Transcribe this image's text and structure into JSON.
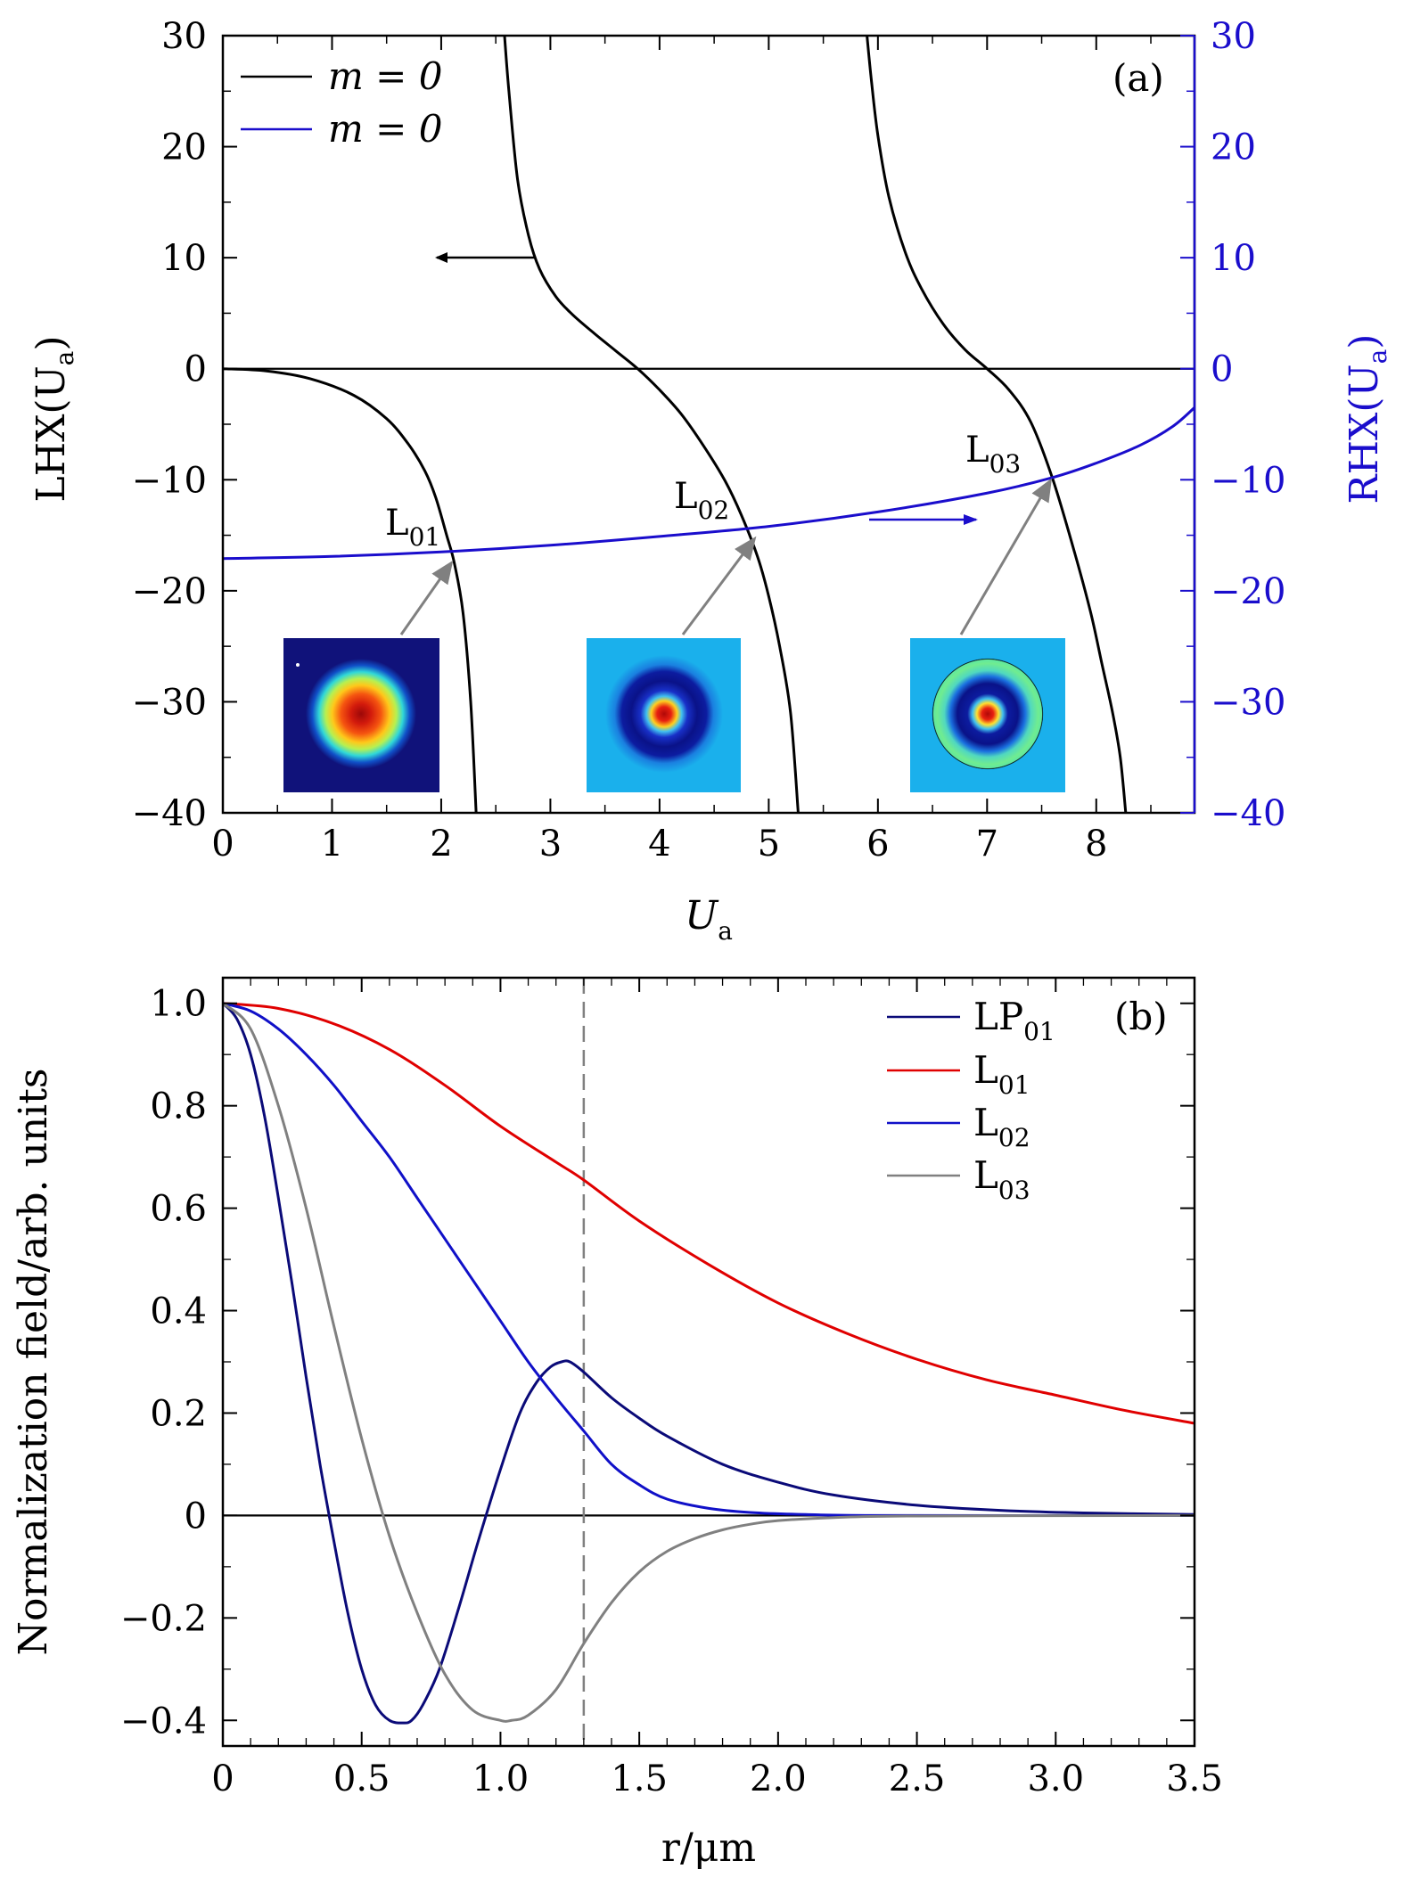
{
  "chart_data": [
    {
      "panel": "(a)",
      "type": "line",
      "xlabel": "U",
      "xlabel_sub": "a",
      "ylabel_left": "LHX(U",
      "ylabel_left_sub": "a",
      "ylabel_left_close": ")",
      "ylabel_right": "RHX(U",
      "ylabel_right_sub": "a",
      "ylabel_right_close": ")",
      "xlim": [
        0,
        8.9
      ],
      "ylim": [
        -40,
        30
      ],
      "xticks": [
        "0",
        "1",
        "2",
        "3",
        "4",
        "5",
        "6",
        "7",
        "8"
      ],
      "yticks_left": [
        "30",
        "20",
        "10",
        "0",
        "−10",
        "−20",
        "−30",
        "−40"
      ],
      "yticks_right": [
        "30",
        "20",
        "10",
        "0",
        "−10",
        "−20",
        "−30",
        "−40"
      ],
      "legend": [
        {
          "label": "m = 0",
          "color": "#000000"
        },
        {
          "label": "m = 0",
          "color": "#1a0dcc"
        }
      ],
      "series": [
        {
          "name": "LHX branch 1",
          "color": "#000000",
          "x": [
            0,
            0.4,
            0.8,
            1.2,
            1.5,
            1.7,
            1.85,
            1.95,
            2.05,
            2.12,
            2.2,
            2.27,
            2.32
          ],
          "y": [
            0,
            -0.2,
            -0.9,
            -2.4,
            -4.5,
            -6.8,
            -9.2,
            -11.6,
            -15,
            -17.5,
            -22,
            -30,
            -40
          ]
        },
        {
          "name": "LHX branch 2",
          "color": "#000000",
          "x": [
            2.58,
            2.62,
            2.7,
            2.8,
            2.9,
            3.05,
            3.2,
            3.4,
            3.6,
            3.8,
            4.0,
            4.2,
            4.4,
            4.6,
            4.75,
            4.9,
            5.0,
            5.1,
            5.2,
            5.27
          ],
          "y": [
            30,
            25,
            17,
            12,
            9,
            6.5,
            4.9,
            3.2,
            1.6,
            0,
            -1.9,
            -4.1,
            -6.9,
            -10.1,
            -13.2,
            -17,
            -20.5,
            -25,
            -31,
            -40
          ]
        },
        {
          "name": "LHX branch 3",
          "color": "#000000",
          "x": [
            5.9,
            5.94,
            6.0,
            6.1,
            6.25,
            6.4,
            6.6,
            6.8,
            7.0,
            7.2,
            7.4,
            7.6,
            7.8,
            7.95,
            8.05,
            8.15,
            8.22,
            8.27
          ],
          "y": [
            30,
            26,
            21,
            15.5,
            10.5,
            7.2,
            4,
            1.7,
            0,
            -1.9,
            -4.8,
            -9.9,
            -16.5,
            -22,
            -26.5,
            -31,
            -35,
            -40
          ]
        },
        {
          "name": "RHX",
          "color": "#1a0dcc",
          "x": [
            0,
            1,
            2,
            3,
            4,
            5,
            6,
            7,
            7.6,
            8,
            8.4,
            8.7,
            8.9
          ],
          "y": [
            -17.1,
            -16.9,
            -16.5,
            -15.9,
            -15.1,
            -14.2,
            -12.9,
            -11.2,
            -9.8,
            -8.5,
            -6.9,
            -5.2,
            -3.5
          ]
        }
      ],
      "zero_line": 0,
      "annotations": [
        {
          "label": "L",
          "sub": "01",
          "x": 2.13,
          "y": -16.6
        },
        {
          "label": "L",
          "sub": "02",
          "x": 4.85,
          "y": -14.4
        },
        {
          "label": "L",
          "sub": "03",
          "x": 7.6,
          "y": -9.9
        }
      ],
      "direction_arrows": [
        {
          "points_to": "left axis",
          "color": "#000000"
        },
        {
          "points_to": "right axis",
          "color": "#1a0dcc"
        }
      ],
      "insets": [
        {
          "for": "L01",
          "background": "#10127a",
          "rings": [
            {
              "color": "#c8180c"
            },
            {
              "color": "#ee3a10"
            },
            {
              "color": "#ffd21a"
            },
            {
              "color": "#50e8b0"
            },
            {
              "color": "#10a8e8"
            }
          ]
        },
        {
          "for": "L02",
          "background": "#1ab0ec",
          "rings": [
            {
              "color": "#0a1288"
            },
            {
              "color": "#2040d8"
            },
            {
              "color": "#f0e040"
            },
            {
              "color": "#c81408"
            }
          ]
        },
        {
          "for": "L03",
          "background": "#1ab0ec",
          "rings": [
            {
              "color": "#000000"
            },
            {
              "color": "#60e8a0"
            },
            {
              "color": "#0a1288"
            },
            {
              "color": "#f0e040"
            },
            {
              "color": "#c81408"
            }
          ]
        }
      ]
    },
    {
      "panel": "(b)",
      "type": "line",
      "xlabel": "r/μm",
      "ylabel": "Normalization field/arb. units",
      "xlim": [
        0,
        3.5
      ],
      "ylim": [
        -0.45,
        1.05
      ],
      "xticks": [
        "0",
        "0.5",
        "1.0",
        "1.5",
        "2.0",
        "2.5",
        "3.0",
        "3.5"
      ],
      "yticks": [
        "1.0",
        "0.8",
        "0.6",
        "0.4",
        "0.2",
        "0",
        "−0.2",
        "−0.4"
      ],
      "legend": [
        {
          "label": "LP",
          "sub": "01",
          "color": "#0a0a78"
        },
        {
          "label": "L",
          "sub": "01",
          "color": "#e00000"
        },
        {
          "label": "L",
          "sub": "02",
          "color": "#1010c8"
        },
        {
          "label": "L",
          "sub": "03",
          "color": "#808080"
        }
      ],
      "vline_x": 1.3,
      "series": [
        {
          "name": "LP01",
          "color": "#0a0a78",
          "x": [
            0,
            0.05,
            0.1,
            0.15,
            0.2,
            0.25,
            0.3,
            0.35,
            0.4,
            0.45,
            0.5,
            0.55,
            0.6,
            0.65,
            0.68,
            0.72,
            0.78,
            0.85,
            0.92,
            1.0,
            1.07,
            1.13,
            1.18,
            1.22,
            1.25,
            1.3,
            1.4,
            1.5,
            1.6,
            1.8,
            2.0,
            2.2,
            2.5,
            2.8,
            3.1,
            3.5
          ],
          "y": [
            1.0,
            0.97,
            0.9,
            0.78,
            0.62,
            0.45,
            0.27,
            0.1,
            -0.05,
            -0.19,
            -0.3,
            -0.37,
            -0.4,
            -0.405,
            -0.4,
            -0.37,
            -0.3,
            -0.18,
            -0.05,
            0.09,
            0.2,
            0.26,
            0.29,
            0.3,
            0.3,
            0.28,
            0.23,
            0.19,
            0.155,
            0.1,
            0.065,
            0.04,
            0.02,
            0.01,
            0.005,
            0.002
          ]
        },
        {
          "name": "L01",
          "color": "#e00000",
          "x": [
            0,
            0.2,
            0.4,
            0.6,
            0.8,
            1.0,
            1.2,
            1.3,
            1.5,
            1.75,
            2.0,
            2.25,
            2.5,
            2.75,
            3.0,
            3.25,
            3.5
          ],
          "y": [
            1.0,
            0.99,
            0.96,
            0.91,
            0.84,
            0.76,
            0.69,
            0.655,
            0.575,
            0.49,
            0.415,
            0.355,
            0.305,
            0.265,
            0.235,
            0.205,
            0.18
          ]
        },
        {
          "name": "L02",
          "color": "#1010c8",
          "x": [
            0,
            0.1,
            0.2,
            0.3,
            0.4,
            0.5,
            0.6,
            0.7,
            0.8,
            0.9,
            1.0,
            1.1,
            1.2,
            1.3,
            1.4,
            1.5,
            1.6,
            1.75,
            1.9,
            2.1,
            2.4,
            3.5
          ],
          "y": [
            1.0,
            0.985,
            0.95,
            0.9,
            0.84,
            0.77,
            0.7,
            0.62,
            0.54,
            0.46,
            0.38,
            0.3,
            0.23,
            0.165,
            0.1,
            0.06,
            0.032,
            0.014,
            0.006,
            0.002,
            0.0,
            0.0
          ]
        },
        {
          "name": "L03",
          "color": "#808080",
          "x": [
            0,
            0.1,
            0.2,
            0.3,
            0.4,
            0.5,
            0.6,
            0.7,
            0.8,
            0.9,
            1.0,
            1.04,
            1.1,
            1.2,
            1.3,
            1.4,
            1.5,
            1.6,
            1.7,
            1.8,
            1.9,
            2.0,
            2.2,
            2.5,
            3.5
          ],
          "y": [
            1.0,
            0.95,
            0.8,
            0.6,
            0.37,
            0.15,
            -0.04,
            -0.19,
            -0.31,
            -0.38,
            -0.4,
            -0.4,
            -0.39,
            -0.34,
            -0.25,
            -0.17,
            -0.11,
            -0.07,
            -0.045,
            -0.028,
            -0.017,
            -0.01,
            -0.004,
            -0.001,
            0.0
          ]
        }
      ],
      "zero_line": 0
    }
  ]
}
